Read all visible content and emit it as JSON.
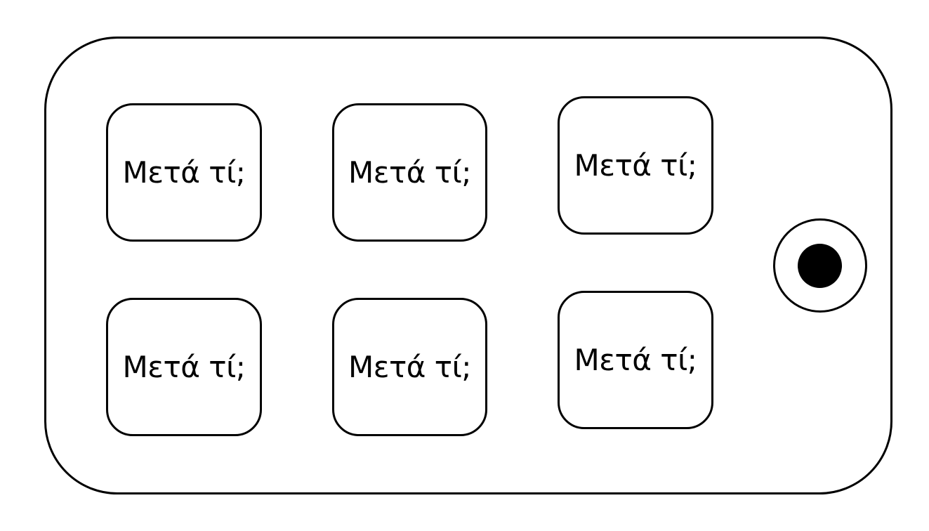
{
  "buttons": [
    {
      "label": "Μετά τί;"
    },
    {
      "label": "Μετά τί;"
    },
    {
      "label": "Μετά τί;"
    },
    {
      "label": "Μετά τί;"
    },
    {
      "label": "Μετά τί;"
    },
    {
      "label": "Μετά τί;"
    }
  ],
  "record_button": {
    "icon": "record-dot-icon"
  },
  "colors": {
    "stroke": "#000000",
    "background": "#ffffff"
  }
}
